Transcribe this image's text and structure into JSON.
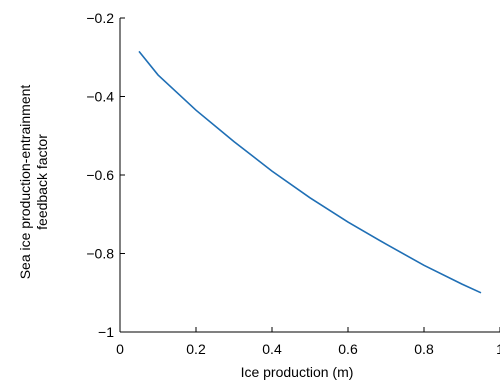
{
  "chart_data": {
    "type": "line",
    "xlabel": "Ice production (m)",
    "ylabel_lines": [
      "Sea ice production-entrainment",
      "feedback factor"
    ],
    "xlim": [
      0,
      1
    ],
    "ylim": [
      -1,
      -0.2
    ],
    "x_ticks": [
      0,
      0.2,
      0.4,
      0.6,
      0.8,
      1
    ],
    "x_tick_labels": [
      "0",
      "0.2",
      "0.4",
      "0.6",
      "0.8",
      "1"
    ],
    "y_ticks": [
      -1,
      -0.8,
      -0.6,
      -0.4,
      -0.2
    ],
    "y_tick_labels": [
      "−1",
      "−0.8",
      "−0.6",
      "−0.4",
      "−0.2"
    ],
    "grid": false,
    "line_color": "#1f6fb5",
    "series": [
      {
        "x": [
          0.05,
          0.1,
          0.2,
          0.3,
          0.4,
          0.5,
          0.6,
          0.7,
          0.8,
          0.9,
          0.95
        ],
        "y": [
          -0.285,
          -0.345,
          -0.435,
          -0.515,
          -0.59,
          -0.658,
          -0.72,
          -0.776,
          -0.83,
          -0.878,
          -0.9
        ]
      }
    ]
  }
}
